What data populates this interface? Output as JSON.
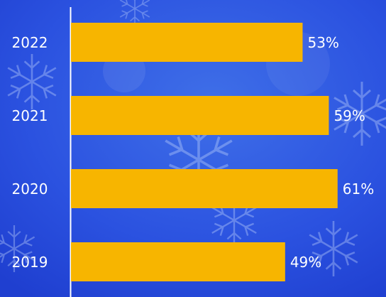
{
  "chart_data": {
    "type": "bar",
    "orientation": "horizontal",
    "categories": [
      "2022",
      "2021",
      "2020",
      "2019"
    ],
    "values": [
      53,
      59,
      61,
      49
    ],
    "value_labels": [
      "53%",
      "59%",
      "61%",
      "49%"
    ],
    "color": "#f7b500"
  }
}
